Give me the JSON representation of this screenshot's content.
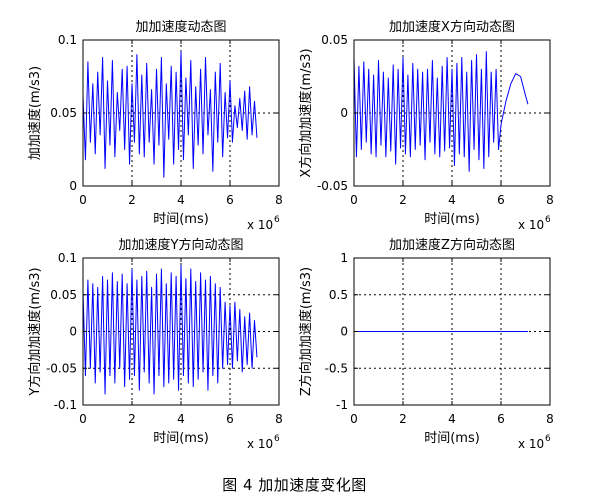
{
  "figure": {
    "caption": "图 4 加加速度变化图"
  },
  "style": {
    "line_color": "#0000ff",
    "axis_color": "#000000",
    "grid_style": "dotted black"
  },
  "chart_data": [
    {
      "type": "line",
      "title": "加加速度动态图",
      "xlabel": "时间(ms)",
      "ylabel": "加加速度(m/s3)",
      "x_exponent": "x 10",
      "x_exponent_power": "6",
      "xlim": [
        0,
        8
      ],
      "ylim": [
        0,
        0.1
      ],
      "xticks": [
        "0",
        "2",
        "4",
        "6",
        "8"
      ],
      "yticks": [
        "0",
        "0.05",
        "0.1"
      ],
      "grid": true,
      "series": [
        {
          "x": [
            0,
            0.1,
            0.2,
            0.3,
            0.4,
            0.5,
            0.6,
            0.7,
            0.8,
            0.9,
            1.0,
            1.1,
            1.2,
            1.3,
            1.4,
            1.5,
            1.6,
            1.7,
            1.8,
            1.9,
            2.0,
            2.1,
            2.2,
            2.3,
            2.4,
            2.5,
            2.6,
            2.7,
            2.8,
            2.9,
            3.0,
            3.1,
            3.2,
            3.3,
            3.4,
            3.5,
            3.6,
            3.7,
            3.8,
            3.9,
            4.0,
            4.1,
            4.2,
            4.3,
            4.4,
            4.5,
            4.6,
            4.7,
            4.8,
            4.9,
            5.0,
            5.1,
            5.2,
            5.3,
            5.4,
            5.5,
            5.6,
            5.7,
            5.8,
            5.9,
            6.0,
            6.1,
            6.2,
            6.3,
            6.4,
            6.5,
            6.6,
            6.7,
            6.8,
            6.9,
            7.0,
            7.1
          ],
          "y": [
            0.062,
            0.018,
            0.085,
            0.03,
            0.07,
            0.022,
            0.078,
            0.035,
            0.088,
            0.012,
            0.072,
            0.028,
            0.086,
            0.02,
            0.064,
            0.038,
            0.08,
            0.025,
            0.082,
            0.015,
            0.07,
            0.03,
            0.09,
            0.022,
            0.076,
            0.02,
            0.084,
            0.03,
            0.066,
            0.015,
            0.08,
            0.028,
            0.088,
            0.006,
            0.07,
            0.032,
            0.082,
            0.015,
            0.078,
            0.025,
            0.092,
            0.018,
            0.074,
            0.035,
            0.086,
            0.012,
            0.068,
            0.028,
            0.08,
            0.022,
            0.088,
            0.035,
            0.066,
            0.01,
            0.078,
            0.03,
            0.084,
            0.02,
            0.064,
            0.033,
            0.072,
            0.03,
            0.055,
            0.04,
            0.06,
            0.038,
            0.065,
            0.032,
            0.068,
            0.035,
            0.058,
            0.033
          ]
        }
      ]
    },
    {
      "type": "line",
      "title": "加加速度X方向动态图",
      "xlabel": "时间(ms)",
      "ylabel": "X方向加加速度(m/s3)",
      "x_exponent": "x 10",
      "x_exponent_power": "6",
      "xlim": [
        0,
        8
      ],
      "ylim": [
        -0.05,
        0.05
      ],
      "xticks": [
        "0",
        "2",
        "4",
        "6",
        "8"
      ],
      "yticks": [
        "-0.05",
        "0",
        "0.05"
      ],
      "grid": true,
      "series": [
        {
          "x": [
            0,
            0.1,
            0.2,
            0.3,
            0.4,
            0.5,
            0.6,
            0.7,
            0.8,
            0.9,
            1.0,
            1.1,
            1.2,
            1.3,
            1.4,
            1.5,
            1.6,
            1.7,
            1.8,
            1.9,
            2.0,
            2.1,
            2.2,
            2.3,
            2.4,
            2.5,
            2.6,
            2.7,
            2.8,
            2.9,
            3.0,
            3.1,
            3.2,
            3.3,
            3.4,
            3.5,
            3.6,
            3.7,
            3.8,
            3.9,
            4.0,
            4.1,
            4.2,
            4.3,
            4.4,
            4.5,
            4.6,
            4.7,
            4.8,
            4.9,
            5.0,
            5.1,
            5.2,
            5.3,
            5.4,
            5.5,
            5.6,
            5.7,
            5.8,
            5.9,
            6.0,
            6.2,
            6.4,
            6.6,
            6.8,
            7.0,
            7.1
          ],
          "y": [
            0.038,
            -0.03,
            0.032,
            -0.025,
            0.035,
            -0.02,
            0.03,
            -0.028,
            0.026,
            -0.03,
            0.036,
            -0.022,
            0.028,
            -0.03,
            0.024,
            -0.026,
            0.033,
            -0.035,
            0.03,
            -0.024,
            0.038,
            -0.028,
            0.026,
            -0.03,
            0.034,
            -0.025,
            0.03,
            -0.022,
            0.028,
            -0.032,
            0.03,
            -0.02,
            0.036,
            -0.028,
            0.024,
            -0.03,
            0.032,
            -0.026,
            0.038,
            -0.024,
            0.03,
            -0.036,
            0.034,
            -0.028,
            0.038,
            -0.03,
            0.028,
            -0.04,
            0.036,
            -0.025,
            0.04,
            -0.032,
            0.03,
            -0.038,
            0.042,
            -0.03,
            0.028,
            -0.02,
            0.03,
            -0.025,
            -0.008,
            0.008,
            0.02,
            0.027,
            0.025,
            0.012,
            0.006
          ]
        }
      ]
    },
    {
      "type": "line",
      "title": "加加速度Y方向动态图",
      "xlabel": "时间(ms)",
      "ylabel": "Y方向加加速度(m/s3)",
      "x_exponent": "x 10",
      "x_exponent_power": "6",
      "xlim": [
        0,
        8
      ],
      "ylim": [
        -0.1,
        0.1
      ],
      "xticks": [
        "0",
        "2",
        "4",
        "6",
        "8"
      ],
      "yticks": [
        "-0.1",
        "-0.05",
        "0",
        "0.05",
        "0.1"
      ],
      "grid": true,
      "series": [
        {
          "x": [
            0,
            0.1,
            0.2,
            0.3,
            0.4,
            0.5,
            0.6,
            0.7,
            0.8,
            0.9,
            1.0,
            1.1,
            1.2,
            1.3,
            1.4,
            1.5,
            1.6,
            1.7,
            1.8,
            1.9,
            2.0,
            2.1,
            2.2,
            2.3,
            2.4,
            2.5,
            2.6,
            2.7,
            2.8,
            2.9,
            3.0,
            3.1,
            3.2,
            3.3,
            3.4,
            3.5,
            3.6,
            3.7,
            3.8,
            3.9,
            4.0,
            4.1,
            4.2,
            4.3,
            4.4,
            4.5,
            4.6,
            4.7,
            4.8,
            4.9,
            5.0,
            5.1,
            5.2,
            5.3,
            5.4,
            5.5,
            5.6,
            5.7,
            5.8,
            5.9,
            6.0,
            6.1,
            6.2,
            6.3,
            6.4,
            6.5,
            6.6,
            6.7,
            6.8,
            6.9,
            7.0,
            7.1
          ],
          "y": [
            0.055,
            -0.06,
            0.07,
            -0.05,
            0.065,
            -0.07,
            0.06,
            -0.055,
            0.075,
            -0.085,
            0.07,
            -0.06,
            0.08,
            -0.07,
            0.068,
            -0.05,
            0.078,
            -0.075,
            0.065,
            -0.065,
            0.085,
            -0.06,
            0.07,
            -0.08,
            0.075,
            -0.055,
            0.082,
            -0.07,
            0.06,
            -0.085,
            0.078,
            -0.06,
            0.085,
            -0.075,
            0.065,
            -0.07,
            0.08,
            -0.065,
            0.075,
            -0.08,
            0.09,
            -0.06,
            0.072,
            -0.07,
            0.085,
            -0.075,
            0.068,
            -0.065,
            0.08,
            -0.055,
            0.07,
            -0.08,
            0.075,
            -0.06,
            0.065,
            -0.07,
            0.06,
            -0.05,
            0.04,
            -0.045,
            0.035,
            -0.05,
            0.04,
            -0.04,
            0.03,
            -0.055,
            0.02,
            -0.045,
            0.025,
            -0.05,
            0.015,
            -0.035
          ]
        }
      ]
    },
    {
      "type": "line",
      "title": "加加速度Z方向动态图",
      "xlabel": "时间(ms)",
      "ylabel": "Z方向加加速度(m/s3)",
      "x_exponent": "x 10",
      "x_exponent_power": "6",
      "xlim": [
        0,
        8
      ],
      "ylim": [
        -1,
        1
      ],
      "xticks": [
        "0",
        "2",
        "4",
        "6",
        "8"
      ],
      "yticks": [
        "-1",
        "-0.5",
        "0",
        "0.5",
        "1"
      ],
      "grid": true,
      "series": [
        {
          "x": [
            0,
            7.1
          ],
          "y": [
            0,
            0
          ]
        }
      ]
    }
  ]
}
